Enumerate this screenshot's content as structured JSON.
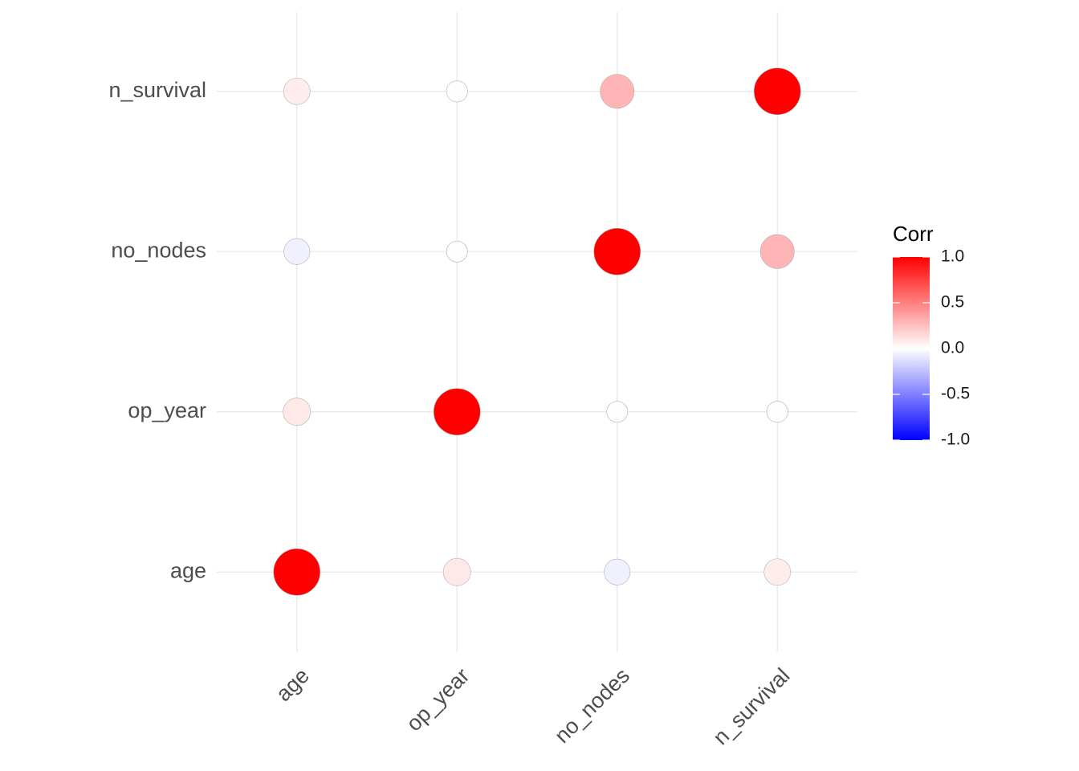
{
  "chart_data": {
    "type": "corrplot",
    "categories": [
      "age",
      "op_year",
      "no_nodes",
      "n_survival"
    ],
    "values": [
      [
        1,
        0.09,
        -0.06,
        0.07
      ],
      [
        0.09,
        1,
        -0.004,
        -0.005
      ],
      [
        -0.06,
        -0.004,
        1,
        0.29
      ],
      [
        0.07,
        -0.005,
        0.29,
        1
      ]
    ],
    "legend_title": "Corr",
    "colors": {
      "low": "#0000ff",
      "mid": "#ffffff",
      "high": "#ff0000"
    },
    "clim": [
      -1,
      1
    ],
    "cticks": [
      {
        "value": -1,
        "label": "-1.0"
      },
      {
        "value": -0.5,
        "label": "-0.5"
      },
      {
        "value": 0,
        "label": "0.0"
      },
      {
        "value": 0.5,
        "label": "0.5"
      },
      {
        "value": 1,
        "label": "1.0"
      }
    ],
    "grid": true
  }
}
